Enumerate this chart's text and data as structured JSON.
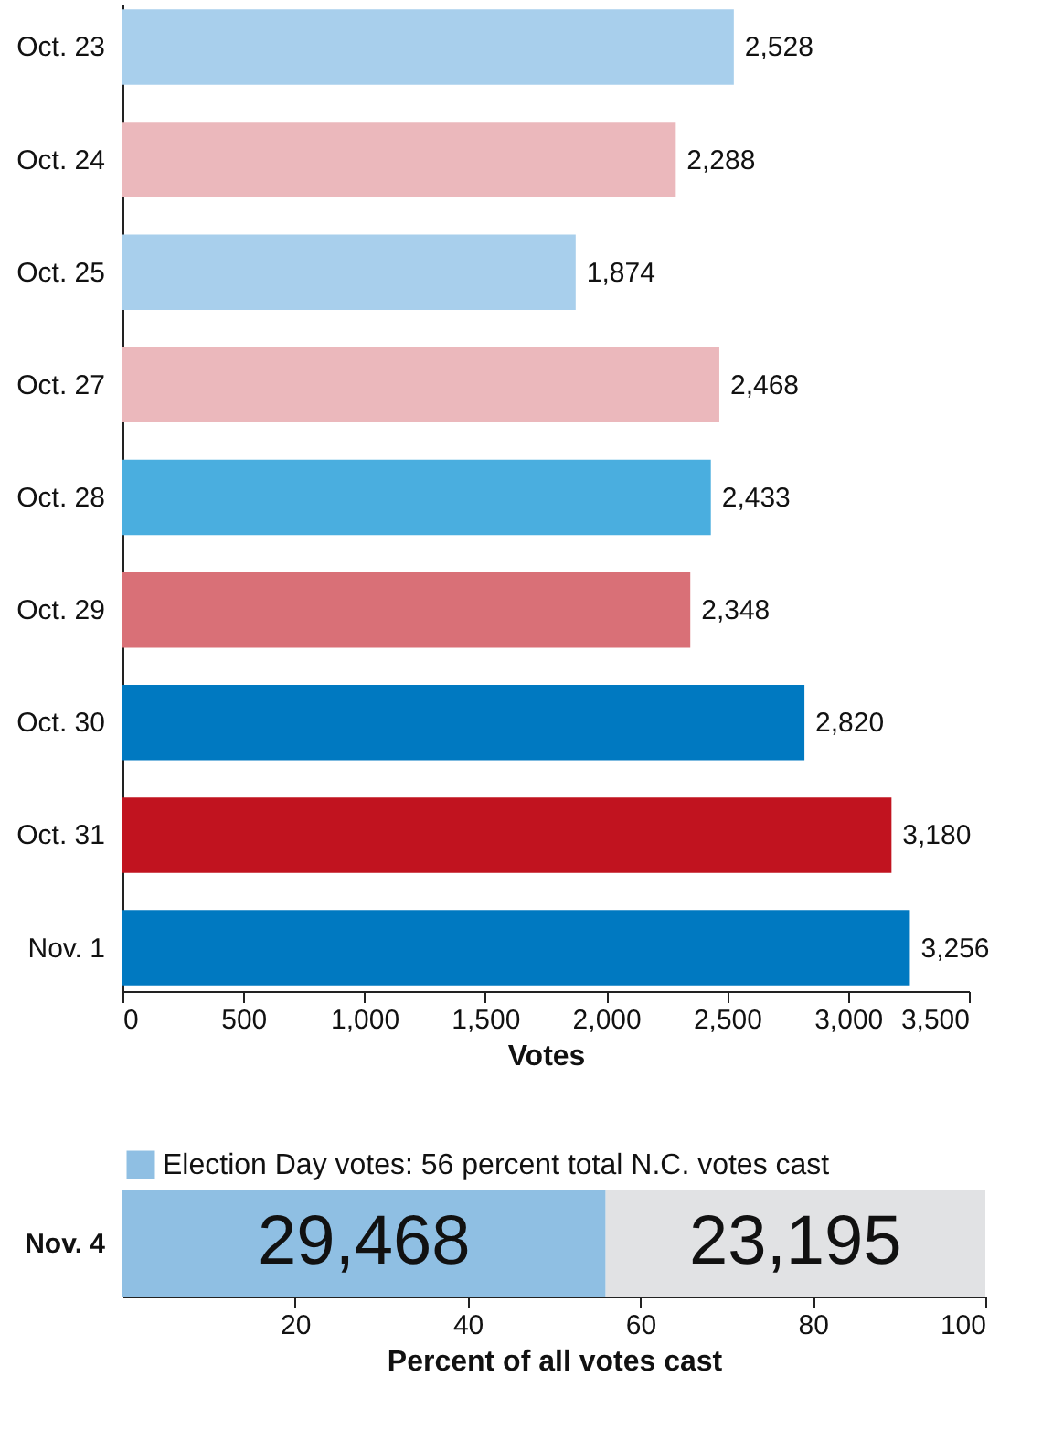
{
  "chart_data": [
    {
      "type": "bar",
      "orientation": "horizontal",
      "xlabel": "Votes",
      "categories": [
        "Oct. 23",
        "Oct. 24",
        "Oct. 25",
        "Oct. 27",
        "Oct. 28",
        "Oct. 29",
        "Oct. 30",
        "Oct. 31",
        "Nov. 1"
      ],
      "values": [
        2528,
        2288,
        1874,
        2468,
        2433,
        2348,
        2820,
        3180,
        3256
      ],
      "value_labels": [
        "2,528",
        "2,288",
        "1,874",
        "2,468",
        "2,433",
        "2,348",
        "2,820",
        "3,180",
        "3,256"
      ],
      "colors": [
        "#a8cfec",
        "#ebb8bc",
        "#a8cfec",
        "#ebb8bc",
        "#4aaedf",
        "#d97077",
        "#0079c1",
        "#c1131f",
        "#0079c1"
      ],
      "xlim": [
        0,
        3500
      ],
      "xticks": [
        0,
        500,
        {
          "value": 1000,
          "label": "1,000"
        },
        {
          "value": 1500,
          "label": "1,500"
        },
        {
          "value": 2000,
          "label": "2,000"
        },
        {
          "value": 2500,
          "label": "2,500"
        },
        {
          "value": 3000,
          "label": "3,000"
        },
        {
          "value": 3500,
          "label": "3,500"
        }
      ],
      "grid": false
    },
    {
      "type": "bar",
      "orientation": "horizontal",
      "stacked": true,
      "xlabel": "Percent of all votes cast",
      "categories": [
        "Nov. 4"
      ],
      "series": [
        {
          "name": "Election Day votes: 56 percent total N.C. votes cast",
          "color": "#8fbfe3",
          "values": [
            56
          ]
        },
        {
          "color": "#e1e2e4",
          "values": [
            44
          ]
        }
      ],
      "annotations": [
        "29,468",
        "23,195"
      ],
      "xlim": [
        0,
        100
      ],
      "xticks": [
        20,
        40,
        60,
        80,
        100
      ],
      "legend": "top left",
      "grid": false
    }
  ]
}
